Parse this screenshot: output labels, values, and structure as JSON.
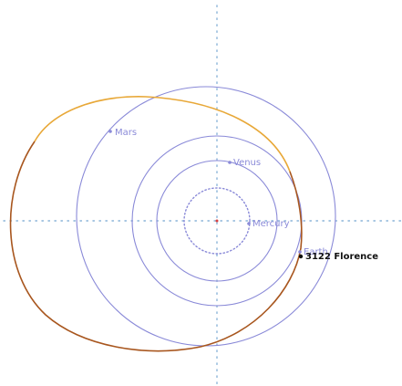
{
  "diagram": {
    "planets": [
      {
        "name": "Mercury",
        "label": "Mercury"
      },
      {
        "name": "Venus",
        "label": "Venus"
      },
      {
        "name": "Earth",
        "label": "Earth"
      },
      {
        "name": "Mars",
        "label": "Mars"
      }
    ],
    "asteroid": {
      "label": "3122 Florence"
    },
    "colors": {
      "planet_orbit": "#8a8ad8",
      "axis": "#8ab4d8",
      "asteroid_orbit_above": "#e8a838",
      "asteroid_orbit_below": "#a8561e",
      "planet_marker": "#8a8ad8",
      "asteroid_marker": "#111111",
      "background": "#ffffff"
    }
  }
}
